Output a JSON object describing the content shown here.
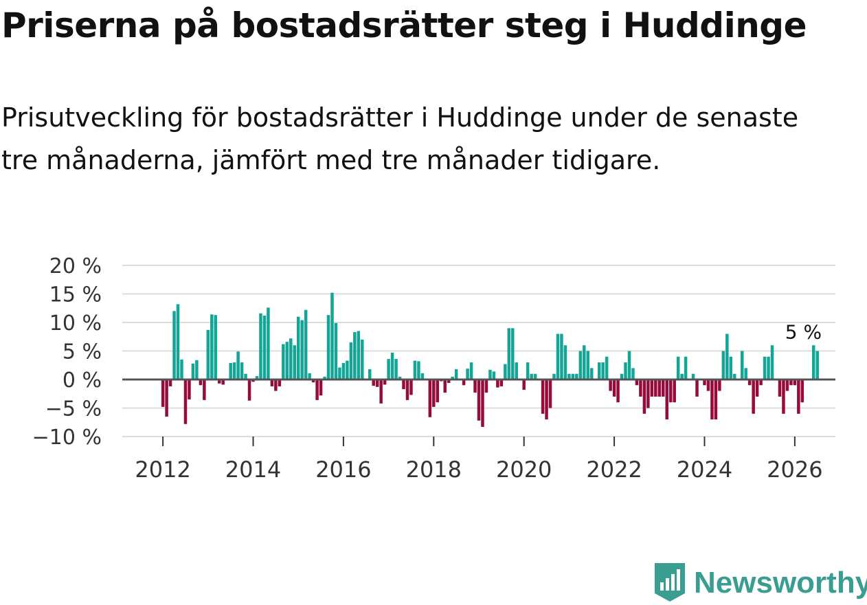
{
  "title": "Priserna på bostadsrätter steg i Huddinge",
  "subtitle": "Prisutveckling för bostadsrätter i Huddinge under de senaste tre månaderna, jämfört med tre månader tidigare.",
  "brand": {
    "name": "Newsworthy",
    "icon": "newsworthy-logo-icon"
  },
  "colors": {
    "positive": "#13a596",
    "negative": "#960a3c",
    "zero_line": "#555555",
    "grid": "#dddddd",
    "brand": "#3a9d92"
  },
  "chart_data": {
    "type": "bar",
    "title": "Priserna på bostadsrätter steg i Huddinge",
    "ylabel": "",
    "xlabel": "",
    "ylim": [
      -10,
      20
    ],
    "yticks": [
      20,
      15,
      10,
      5,
      0,
      -5,
      -10
    ],
    "ytick_labels": [
      "20 %",
      "15 %",
      "10 %",
      "5 %",
      "0 %",
      "−5 %",
      "−10 %"
    ],
    "xlim": [
      2011.1,
      2026.9
    ],
    "xticks": [
      2012,
      2014,
      2016,
      2018,
      2020,
      2022,
      2024,
      2026
    ],
    "xtick_labels": [
      "2012",
      "2014",
      "2016",
      "2018",
      "2020",
      "2022",
      "2024",
      "2026"
    ],
    "start": 2012.0,
    "step_months": 1,
    "annotation": {
      "text": "5 %",
      "x": 2026.1,
      "y": 5
    },
    "values": [
      -4.8,
      -6.5,
      -1.2,
      12,
      13.2,
      3.5,
      -7.8,
      -3.5,
      2.8,
      3.4,
      -1,
      -3.6,
      8.7,
      11.4,
      11.3,
      -0.7,
      -0.9,
      0,
      2.9,
      3,
      4.9,
      3,
      1,
      -3.7,
      -0.4,
      0.6,
      11.6,
      11.2,
      12.6,
      -1.2,
      -2,
      -1.2,
      6.2,
      6.6,
      7.2,
      6,
      11,
      10.4,
      12.2,
      1.1,
      -0.5,
      -3.6,
      -2.8,
      0.5,
      11.3,
      15.2,
      9.9,
      2.1,
      2.9,
      3.3,
      6.5,
      8.3,
      8.5,
      7,
      0,
      1.8,
      -1.1,
      -1.3,
      -4.2,
      -0.9,
      3.6,
      4.7,
      3.6,
      0.5,
      -1.7,
      -3.6,
      -2.7,
      3.3,
      3.2,
      1.1,
      0,
      -6.6,
      -4.8,
      -4,
      -0.3,
      -2.3,
      -0.6,
      0.5,
      1.8,
      0,
      -1,
      1.9,
      3,
      -2.3,
      -7.2,
      -8.3,
      -2.3,
      1.7,
      1.4,
      -1.4,
      -1.2,
      2.7,
      9,
      9,
      3,
      0,
      -1.8,
      3,
      1,
      1,
      0,
      -6,
      -7,
      -5,
      1,
      8,
      8,
      6,
      1,
      1,
      1,
      5,
      6,
      5,
      2,
      0,
      3,
      3,
      4,
      -2,
      -3,
      -4,
      1,
      3,
      5,
      2,
      -1,
      -3,
      -6,
      -5,
      -3,
      -3,
      -3,
      -3,
      -7,
      -4,
      -4,
      4,
      1,
      4,
      0,
      1,
      -3,
      0,
      -1,
      -2,
      -7,
      -7,
      -2,
      5,
      8,
      4,
      1,
      0,
      5,
      2,
      -1,
      -6,
      -3,
      -1,
      4,
      4,
      6,
      0,
      -3,
      -6,
      -2,
      -1,
      -1,
      -6,
      -4,
      0,
      0,
      6,
      5
    ]
  }
}
